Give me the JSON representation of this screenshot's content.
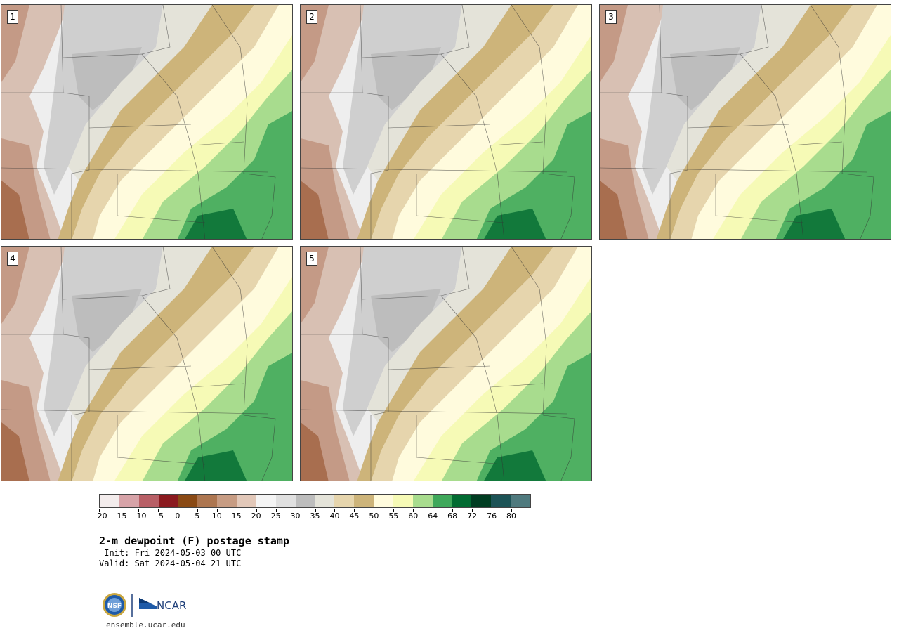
{
  "panels": [
    {
      "label": "1"
    },
    {
      "label": "2"
    },
    {
      "label": "3"
    },
    {
      "label": "4"
    },
    {
      "label": "5"
    }
  ],
  "colorbar": {
    "colors": [
      "#f3ecec",
      "#d7a3a8",
      "#b85f66",
      "#8b1a1f",
      "#8a4a15",
      "#ad7650",
      "#c79c83",
      "#e2c8b9",
      "#f4f4f4",
      "#e0e0e0",
      "#bdbdbd",
      "#e4e3d9",
      "#e6d5ad",
      "#cdb47a",
      "#fffbdd",
      "#f6fab6",
      "#a8dc8e",
      "#3fa85b",
      "#026b32",
      "#003d22",
      "#1c5356",
      "#4f7a7e"
    ],
    "tick_labels": [
      "−20",
      "−15",
      "−10",
      "−5",
      "0",
      "5",
      "10",
      "15",
      "20",
      "25",
      "30",
      "35",
      "40",
      "45",
      "50",
      "55",
      "60",
      "64",
      "68",
      "72",
      "76",
      "80"
    ]
  },
  "title": "2-m dewpoint (F) postage stamp",
  "init": " Init: Fri 2024-05-03 00 UTC",
  "valid": "Valid: Sat 2024-05-04 21 UTC",
  "logos": {
    "nsf": "NSF",
    "ncar": "NCAR"
  },
  "site": "ensemble.ucar.edu"
}
